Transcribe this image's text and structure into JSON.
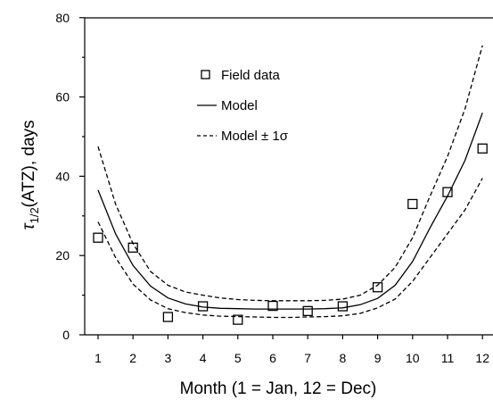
{
  "chart_data": {
    "type": "scatter",
    "xlabel": "Month (1 = Jan, 12 = Dec)",
    "ylabel": "τ1/2(ATZ), days",
    "ylabel_parts": {
      "pre": "τ",
      "sub": "1/2",
      "post": "(ATZ), days"
    },
    "xlim": [
      0.7,
      12.3
    ],
    "ylim": [
      0,
      80
    ],
    "xticks": [
      "1",
      "2",
      "3",
      "4",
      "5",
      "6",
      "7",
      "8",
      "9",
      "10",
      "11",
      "12"
    ],
    "yticks": [
      "0",
      "20",
      "40",
      "60",
      "80"
    ],
    "legend": {
      "position": "top-left",
      "entries": [
        "Field data",
        "Model",
        "Model ± 1σ"
      ]
    },
    "series": [
      {
        "name": "Field data",
        "style": "hollow-square",
        "points": [
          [
            1,
            24.5
          ],
          [
            2,
            22.0
          ],
          [
            3,
            4.5
          ],
          [
            4,
            7.2
          ],
          [
            5,
            3.8
          ],
          [
            6,
            7.3
          ],
          [
            7,
            6.0
          ],
          [
            8,
            7.2
          ],
          [
            9,
            12.0
          ],
          [
            10,
            33.0
          ],
          [
            11,
            36.0
          ],
          [
            12,
            47.0
          ]
        ]
      },
      {
        "name": "Model",
        "style": "solid",
        "points": [
          [
            1,
            36.5
          ],
          [
            1.5,
            25.5
          ],
          [
            2,
            17.5
          ],
          [
            2.5,
            12.3
          ],
          [
            3,
            9.3
          ],
          [
            3.5,
            7.8
          ],
          [
            4,
            7.0
          ],
          [
            4.5,
            6.7
          ],
          [
            5,
            6.6
          ],
          [
            5.5,
            6.5
          ],
          [
            6,
            6.5
          ],
          [
            6.5,
            6.5
          ],
          [
            7,
            6.5
          ],
          [
            7.5,
            6.6
          ],
          [
            8,
            6.8
          ],
          [
            8.5,
            7.6
          ],
          [
            9,
            9.2
          ],
          [
            9.5,
            12.5
          ],
          [
            10,
            18.5
          ],
          [
            10.5,
            27.0
          ],
          [
            11,
            35.0
          ],
          [
            11.5,
            44.0
          ],
          [
            12,
            56.0
          ]
        ]
      },
      {
        "name": "Model + 1σ",
        "style": "dashed",
        "points": [
          [
            1,
            47.5
          ],
          [
            1.5,
            33.0
          ],
          [
            2,
            23.0
          ],
          [
            2.5,
            16.0
          ],
          [
            3,
            12.5
          ],
          [
            3.5,
            10.8
          ],
          [
            4,
            10.0
          ],
          [
            4.5,
            9.3
          ],
          [
            5,
            8.9
          ],
          [
            5.5,
            8.7
          ],
          [
            6,
            8.6
          ],
          [
            6.5,
            8.6
          ],
          [
            7,
            8.6
          ],
          [
            7.5,
            8.7
          ],
          [
            8,
            9.0
          ],
          [
            8.5,
            10.0
          ],
          [
            9,
            12.5
          ],
          [
            9.5,
            17.0
          ],
          [
            10,
            24.5
          ],
          [
            10.5,
            35.0
          ],
          [
            11,
            45.0
          ],
          [
            11.5,
            57.0
          ],
          [
            12,
            73.0
          ]
        ]
      },
      {
        "name": "Model − 1σ",
        "style": "dashed",
        "points": [
          [
            1,
            28.5
          ],
          [
            1.5,
            19.5
          ],
          [
            2,
            12.8
          ],
          [
            2.5,
            8.8
          ],
          [
            3,
            6.6
          ],
          [
            3.5,
            5.6
          ],
          [
            4,
            5.0
          ],
          [
            4.5,
            4.7
          ],
          [
            5,
            4.6
          ],
          [
            5.5,
            4.5
          ],
          [
            6,
            4.4
          ],
          [
            6.5,
            4.4
          ],
          [
            7,
            4.5
          ],
          [
            7.5,
            4.6
          ],
          [
            8,
            4.8
          ],
          [
            8.5,
            5.4
          ],
          [
            9,
            6.8
          ],
          [
            9.5,
            9.0
          ],
          [
            10,
            13.5
          ],
          [
            10.5,
            19.5
          ],
          [
            11,
            25.5
          ],
          [
            11.5,
            31.5
          ],
          [
            12,
            39.5
          ]
        ]
      }
    ]
  }
}
